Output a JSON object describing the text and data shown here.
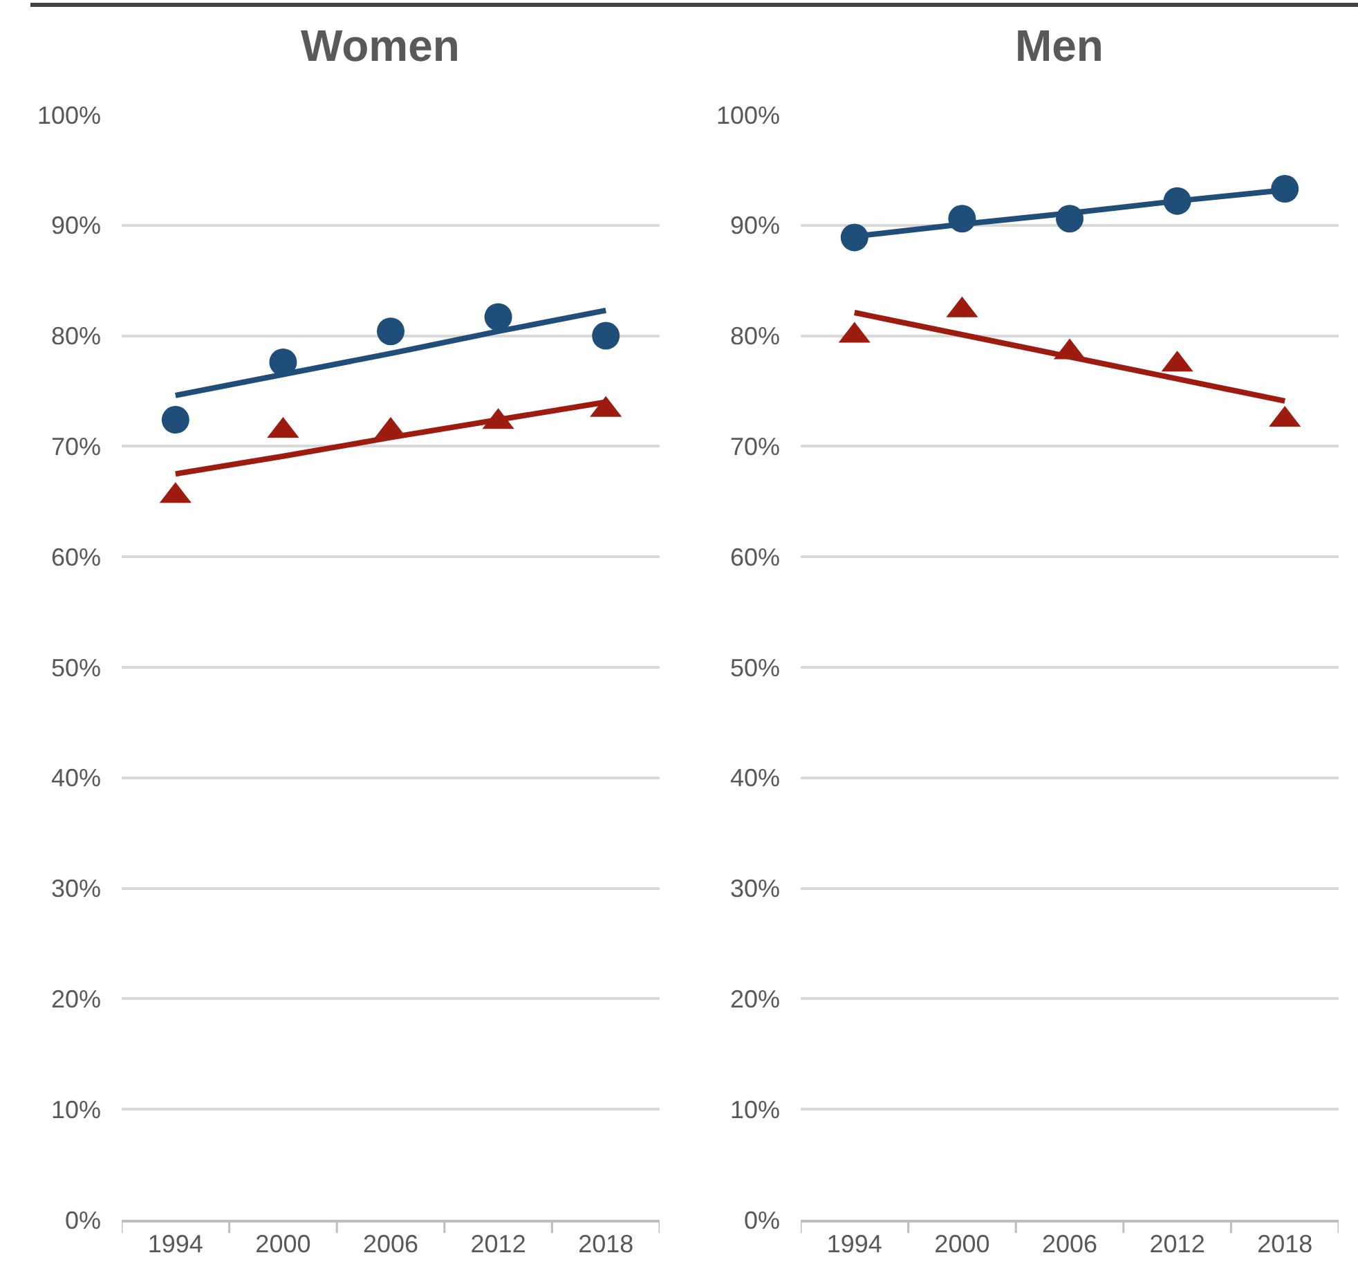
{
  "chart_data": [
    {
      "type": "scatter",
      "title": "Women",
      "categories": [
        "1994",
        "2000",
        "2006",
        "2012",
        "2018"
      ],
      "ylim": [
        0,
        100
      ],
      "yticks": [
        {
          "value": 0,
          "label": "0%"
        },
        {
          "value": 10,
          "label": "10%"
        },
        {
          "value": 20,
          "label": "20%"
        },
        {
          "value": 30,
          "label": "30%"
        },
        {
          "value": 40,
          "label": "40%"
        },
        {
          "value": 50,
          "label": "50%"
        },
        {
          "value": 60,
          "label": "60%"
        },
        {
          "value": 70,
          "label": "70%"
        },
        {
          "value": 80,
          "label": "80%"
        },
        {
          "value": 90,
          "label": "90%"
        },
        {
          "value": 100,
          "label": "100%"
        }
      ],
      "grid": "y",
      "series": [
        {
          "type": "scatter",
          "color": "#1f4e79",
          "marker": "circle",
          "values": [
            72.4,
            77.6,
            80.4,
            81.7,
            80.0
          ]
        },
        {
          "type": "scatter",
          "color": "#9e1b0f",
          "marker": "triangle",
          "values": [
            65.5,
            71.4,
            71.4,
            72.2,
            73.3
          ]
        },
        {
          "type": "line",
          "color": "#1f4e79",
          "marker": "none",
          "values": [
            74.6,
            76.5,
            78.4,
            80.4,
            82.3
          ]
        },
        {
          "type": "line",
          "color": "#9e1b0f",
          "marker": "none",
          "values": [
            67.5,
            69.1,
            70.8,
            72.4,
            74.0
          ]
        }
      ]
    },
    {
      "type": "scatter",
      "title": "Men",
      "categories": [
        "1994",
        "2000",
        "2006",
        "2012",
        "2018"
      ],
      "ylim": [
        0,
        100
      ],
      "yticks": [
        {
          "value": 0,
          "label": "0%"
        },
        {
          "value": 10,
          "label": "10%"
        },
        {
          "value": 20,
          "label": "20%"
        },
        {
          "value": 30,
          "label": "30%"
        },
        {
          "value": 40,
          "label": "40%"
        },
        {
          "value": 50,
          "label": "50%"
        },
        {
          "value": 60,
          "label": "60%"
        },
        {
          "value": 70,
          "label": "70%"
        },
        {
          "value": 80,
          "label": "80%"
        },
        {
          "value": 90,
          "label": "90%"
        },
        {
          "value": 100,
          "label": "100%"
        }
      ],
      "grid": "y",
      "series": [
        {
          "type": "scatter",
          "color": "#1f4e79",
          "marker": "circle",
          "values": [
            88.9,
            90.6,
            90.6,
            92.2,
            93.3
          ]
        },
        {
          "type": "scatter",
          "color": "#9e1b0f",
          "marker": "triangle",
          "values": [
            80.0,
            82.3,
            78.5,
            77.4,
            72.4
          ]
        },
        {
          "type": "line",
          "color": "#1f4e79",
          "marker": "none",
          "values": [
            89.0,
            90.1,
            91.1,
            92.2,
            93.2
          ]
        },
        {
          "type": "line",
          "color": "#9e1b0f",
          "marker": "none",
          "values": [
            82.1,
            80.1,
            78.1,
            76.1,
            74.1
          ]
        }
      ]
    }
  ]
}
